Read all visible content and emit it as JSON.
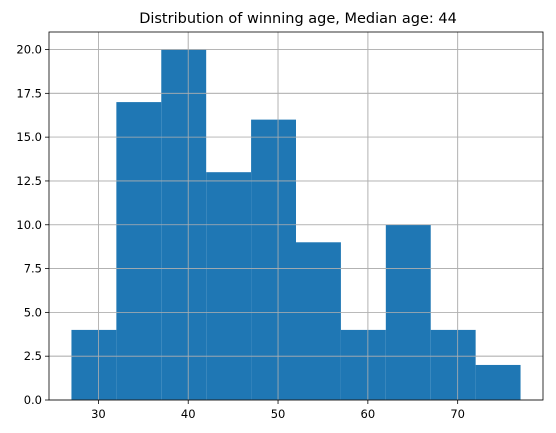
{
  "chart_data": {
    "type": "bar",
    "title": "Distribution of winning age, Median age: 44",
    "xlabel": "",
    "ylabel": "",
    "bins": [
      {
        "start": 27,
        "end": 32,
        "count": 4
      },
      {
        "start": 32,
        "end": 37,
        "count": 17
      },
      {
        "start": 37,
        "end": 42,
        "count": 20
      },
      {
        "start": 42,
        "end": 47,
        "count": 13
      },
      {
        "start": 47,
        "end": 52,
        "count": 16
      },
      {
        "start": 52,
        "end": 57,
        "count": 9
      },
      {
        "start": 57,
        "end": 62,
        "count": 4
      },
      {
        "start": 62,
        "end": 67,
        "count": 10
      },
      {
        "start": 67,
        "end": 72,
        "count": 4
      },
      {
        "start": 72,
        "end": 77,
        "count": 2
      }
    ],
    "xlim": [
      24.5,
      79.5
    ],
    "ylim": [
      0,
      21
    ],
    "xticks": [
      30,
      40,
      50,
      60,
      70
    ],
    "xtick_labels": [
      "30",
      "40",
      "50",
      "60",
      "70"
    ],
    "yticks": [
      0,
      2.5,
      5,
      7.5,
      10,
      12.5,
      15,
      17.5,
      20
    ],
    "ytick_labels": [
      "0.0",
      "2.5",
      "5.0",
      "7.5",
      "10.0",
      "12.5",
      "15.0",
      "17.5",
      "20.0"
    ],
    "grid": true,
    "legend": "none",
    "bar_color": "#1f77b4",
    "grid_color": "#b0b0b0"
  }
}
